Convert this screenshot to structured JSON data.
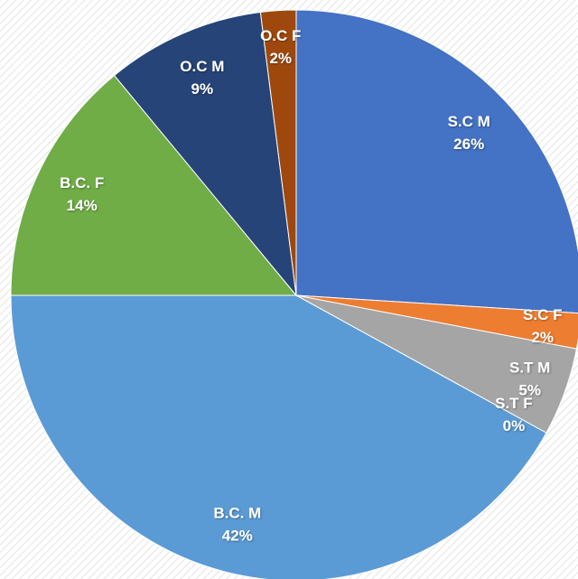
{
  "chart_data": {
    "type": "pie",
    "categories": [
      "S.C M",
      "S.C F",
      "S.T M",
      "S.T F",
      "B.C. M",
      "B.C. F",
      "O.C M",
      "O.C F"
    ],
    "values": [
      26,
      2,
      5,
      0,
      42,
      14,
      9,
      2
    ],
    "value_labels": [
      "26%",
      "2%",
      "5%",
      "0%",
      "42%",
      "14%",
      "9%",
      "2%"
    ],
    "colors": [
      "#4472c4",
      "#ed7d31",
      "#a5a5a5",
      "#ffc000",
      "#5b9bd5",
      "#70ad47",
      "#264478",
      "#9e480e"
    ]
  }
}
